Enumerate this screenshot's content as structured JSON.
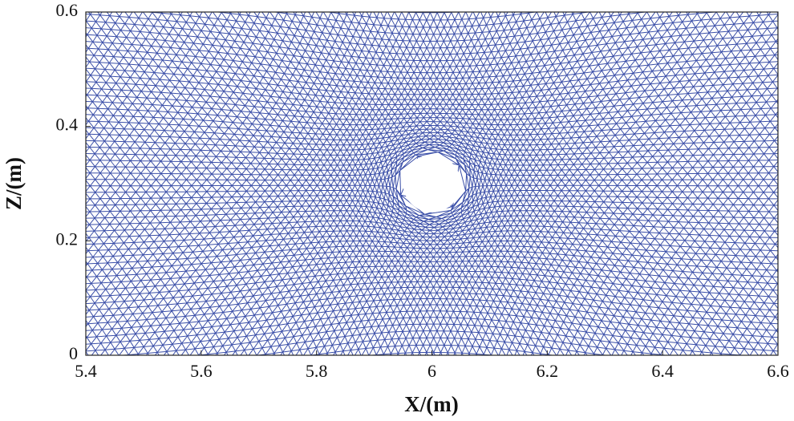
{
  "chart_data": {
    "type": "mesh",
    "xlabel": "X/(m)",
    "ylabel": "Z/(m)",
    "xlim": [
      5.4,
      6.6
    ],
    "ylim": [
      0,
      0.6
    ],
    "xticks": [
      5.4,
      5.6,
      5.8,
      6,
      6.2,
      6.4,
      6.6
    ],
    "yticks": [
      0,
      0.2,
      0.4,
      0.6
    ],
    "color": "#3b4fa8",
    "hole": {
      "x": 6,
      "z": 0.3,
      "r": 0.05
    }
  }
}
